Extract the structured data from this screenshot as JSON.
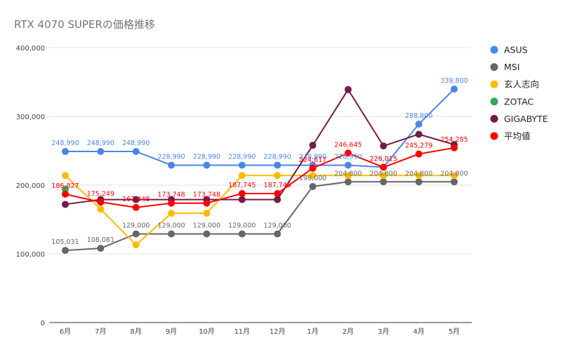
{
  "chart_data": {
    "type": "line",
    "title": "RTX 4070 SUPERの価格推移",
    "categories": [
      "6月",
      "7月",
      "8月",
      "9月",
      "10月",
      "11月",
      "12月",
      "1月",
      "2月",
      "3月",
      "4月",
      "5月"
    ],
    "ylim": [
      0,
      400000
    ],
    "yticks": [
      0,
      100000,
      200000,
      300000,
      400000
    ],
    "ytick_labels": [
      "0",
      "100,000",
      "200,000",
      "300,000",
      "400,000"
    ],
    "grid": true,
    "legend_position": "right",
    "series": [
      {
        "name": "ASUS",
        "color": "#4a86e8",
        "values": [
          248990,
          248990,
          248990,
          228990,
          228990,
          228990,
          228990,
          228990,
          228990,
          226015,
          288800,
          339800
        ],
        "labels": [
          "248,990",
          "248,990",
          "248,990",
          "228,990",
          "228,990",
          "228,990",
          "228,990",
          "228,990",
          "228,990",
          "226,015",
          "288,800",
          "339,800"
        ]
      },
      {
        "name": "MSI",
        "color": "#666666",
        "values": [
          105031,
          108081,
          129000,
          129000,
          129000,
          129000,
          129000,
          198000,
          204800,
          204800,
          204800,
          204800
        ],
        "labels": [
          "105,031",
          "108,081",
          "129,000",
          "129,000",
          "129,000",
          "129,000",
          "129,000",
          "198,000",
          "204,800",
          "204,800",
          "204,800",
          "204,800"
        ]
      },
      {
        "name": "玄人志向",
        "color": "#fbbc04",
        "values": [
          214000,
          165000,
          113000,
          159000,
          159000,
          214000,
          214000,
          214000,
          214000,
          214000,
          214000,
          214000
        ]
      },
      {
        "name": "ZOTAC",
        "color": "#34a853",
        "values": [
          194000,
          null,
          null,
          null,
          null,
          null,
          null,
          null,
          null,
          null,
          null,
          null
        ]
      },
      {
        "name": "GIGABYTE",
        "color": "#741b47",
        "values": [
          172000,
          179000,
          179000,
          179000,
          179000,
          179000,
          179000,
          258000,
          339000,
          257000,
          274000,
          259000
        ]
      },
      {
        "name": "平均値",
        "color": "#ff0000",
        "values": [
          186827,
          175249,
          167448,
          173748,
          173748,
          187745,
          187745,
          224617,
          246645,
          226015,
          245279,
          254285
        ],
        "labels": [
          "186,827",
          "175,249",
          "167,448",
          "173,748",
          "173,748",
          "187,745",
          "187,745",
          "224,617",
          "246,645",
          "226,015",
          "245,279",
          "254,285"
        ]
      }
    ]
  }
}
